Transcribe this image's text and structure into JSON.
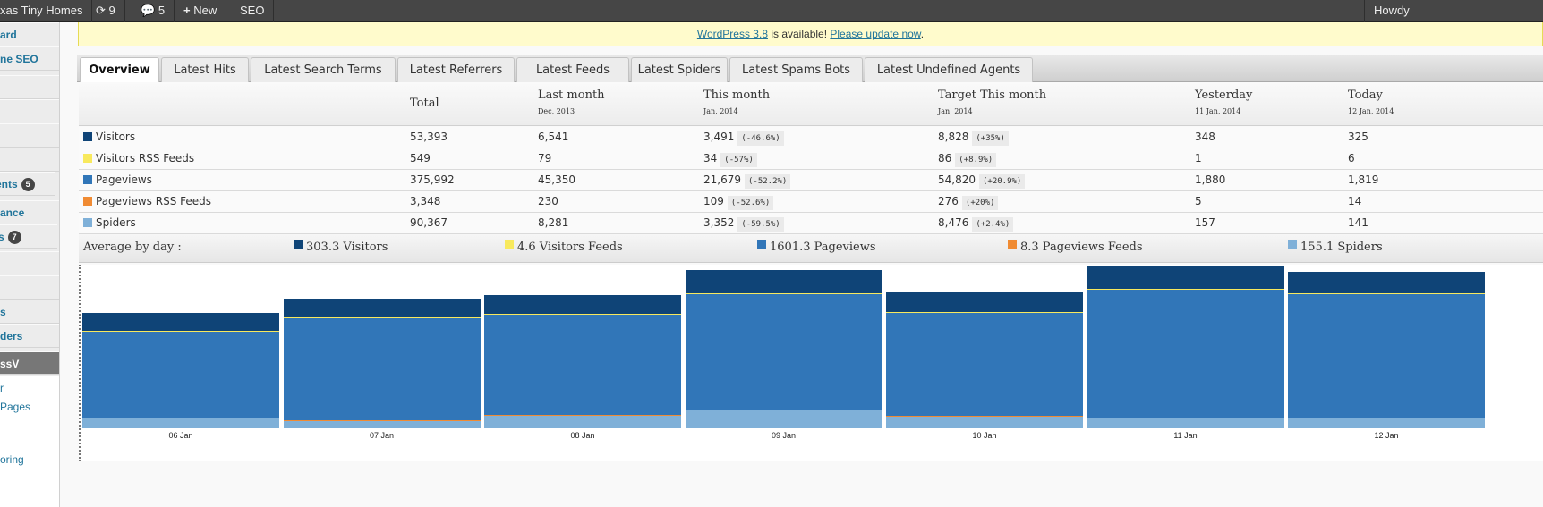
{
  "admin_bar": {
    "site": "xas Tiny Homes",
    "updates": "9",
    "comments": "5",
    "new_label": "New",
    "seo_label": "SEO",
    "howdy": "Howdy"
  },
  "sidebar": {
    "items": [
      {
        "label": "ard"
      },
      {
        "label": "ne SEO"
      },
      {
        "label": ""
      },
      {
        "label": ""
      },
      {
        "label": ""
      },
      {
        "label": ""
      },
      {
        "label": "ents",
        "badge": "5"
      },
      {
        "label": "ance"
      },
      {
        "label": "s",
        "badge": "7"
      },
      {
        "label": ""
      },
      {
        "label": ""
      },
      {
        "label": "s"
      },
      {
        "label": "ders"
      }
    ],
    "active": "ssV",
    "submenu": [
      "r",
      "Pages",
      "oring"
    ]
  },
  "notice": {
    "link1": "WordPress 3.8",
    "text": " is available! ",
    "link2": "Please update now",
    "end": "."
  },
  "tabs": [
    "Overview",
    "Latest Hits",
    "Latest Search Terms",
    "Latest Referrers",
    "Latest Feeds",
    "Latest Spiders",
    "Latest Spams Bots",
    "Latest Undefined Agents"
  ],
  "table": {
    "headers": [
      {
        "label": "Total",
        "sub": ""
      },
      {
        "label": "Last month",
        "sub": "Dec, 2013"
      },
      {
        "label": "This month",
        "sub": "Jan, 2014"
      },
      {
        "label": "Target This month",
        "sub": "Jan, 2014"
      },
      {
        "label": "Yesterday",
        "sub": "11 Jan, 2014"
      },
      {
        "label": "Today",
        "sub": "12 Jan, 2014"
      }
    ],
    "rows": [
      {
        "name": "Visitors",
        "color": "#0f4477",
        "total": "53,393",
        "last": "6,541",
        "this": "3,491",
        "this_pct": "(-46.6%)",
        "target": "8,828",
        "target_pct": "(+35%)",
        "yesterday": "348",
        "today": "325"
      },
      {
        "name": "Visitors RSS Feeds",
        "color": "#f8e95d",
        "total": "549",
        "last": "79",
        "this": "34",
        "this_pct": "(-57%)",
        "target": "86",
        "target_pct": "(+8.9%)",
        "yesterday": "1",
        "today": "6"
      },
      {
        "name": "Pageviews",
        "color": "#3176b8",
        "total": "375,992",
        "last": "45,350",
        "this": "21,679",
        "this_pct": "(-52.2%)",
        "target": "54,820",
        "target_pct": "(+20.9%)",
        "yesterday": "1,880",
        "today": "1,819"
      },
      {
        "name": "Pageviews RSS Feeds",
        "color": "#f08b33",
        "total": "3,348",
        "last": "230",
        "this": "109",
        "this_pct": "(-52.6%)",
        "target": "276",
        "target_pct": "(+20%)",
        "yesterday": "5",
        "today": "14"
      },
      {
        "name": "Spiders",
        "color": "#7fb0d8",
        "total": "90,367",
        "last": "8,281",
        "this": "3,352",
        "this_pct": "(-59.5%)",
        "target": "8,476",
        "target_pct": "(+2.4%)",
        "yesterday": "157",
        "today": "141"
      }
    ]
  },
  "average": {
    "label": "Average by day :",
    "items": [
      {
        "text": "303.3 Visitors",
        "color": "#0f4477"
      },
      {
        "text": "4.6 Visitors Feeds",
        "color": "#f8e95d"
      },
      {
        "text": "1601.3 Pageviews",
        "color": "#3176b8"
      },
      {
        "text": "8.3 Pageviews Feeds",
        "color": "#f08b33"
      },
      {
        "text": "155.1 Spiders",
        "color": "#7fb0d8"
      }
    ]
  },
  "chart_data": {
    "type": "bar",
    "stacked": true,
    "categories": [
      "06 Jan",
      "07 Jan",
      "08 Jan",
      "09 Jan",
      "10 Jan",
      "11 Jan",
      "12 Jan"
    ],
    "series": [
      {
        "name": "Spiders",
        "color": "#7fb0d8",
        "values": [
          158,
          118,
          184,
          263,
          171,
          157,
          141
        ]
      },
      {
        "name": "Pageviews RSS Feeds",
        "color": "#f08b33",
        "values": [
          5,
          5,
          8,
          10,
          8,
          5,
          14
        ]
      },
      {
        "name": "Pageviews",
        "color": "#3176b8",
        "values": [
          1262,
          1498,
          1485,
          1708,
          1524,
          1880,
          1819
        ]
      },
      {
        "name": "Visitors RSS Feeds",
        "color": "#f8e95d",
        "values": [
          4,
          4,
          5,
          5,
          5,
          1,
          6
        ]
      },
      {
        "name": "Visitors",
        "color": "#0f4477",
        "values": [
          263,
          276,
          276,
          342,
          302,
          348,
          325
        ]
      }
    ],
    "ylim": [
      0,
      2400
    ],
    "grid": false
  }
}
